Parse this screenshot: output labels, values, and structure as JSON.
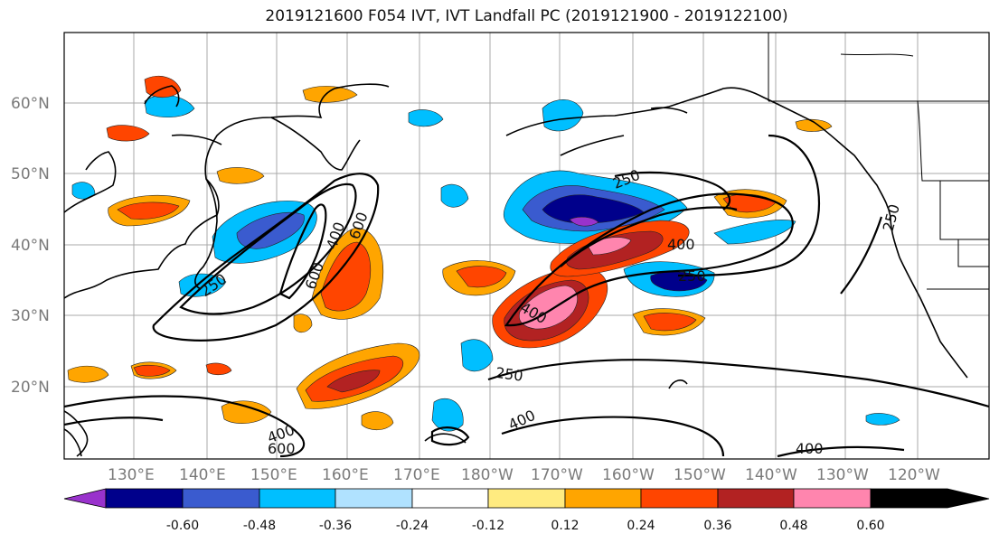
{
  "title": "2019121600 F054 IVT, IVT Landfall PC (2019121900 - 2019122100)",
  "lat_labels": [
    "60°N",
    "50°N",
    "40°N",
    "30°N",
    "20°N"
  ],
  "lon_labels": [
    "130°E",
    "140°E",
    "150°E",
    "160°E",
    "170°E",
    "180°W",
    "170°W",
    "160°W",
    "150°W",
    "140°W",
    "130°W",
    "120°W"
  ],
  "contour_labels": [
    "250",
    "400",
    "600",
    "250",
    "400",
    "250",
    "400",
    "600",
    "250",
    "400",
    "400",
    "600",
    "400",
    "250"
  ],
  "colorbar": {
    "tick_labels": [
      "-0.60",
      "-0.48",
      "-0.36",
      "-0.24",
      "-0.12",
      "0.12",
      "0.24",
      "0.36",
      "0.48",
      "0.60"
    ],
    "colors": [
      "#9932cc",
      "#00008b",
      "#3a5bcf",
      "#00bfff",
      "#b0e2ff",
      "#ffffff",
      "#ffeb80",
      "#ffa500",
      "#ff4500",
      "#b22222",
      "#ff85ae"
    ]
  }
}
